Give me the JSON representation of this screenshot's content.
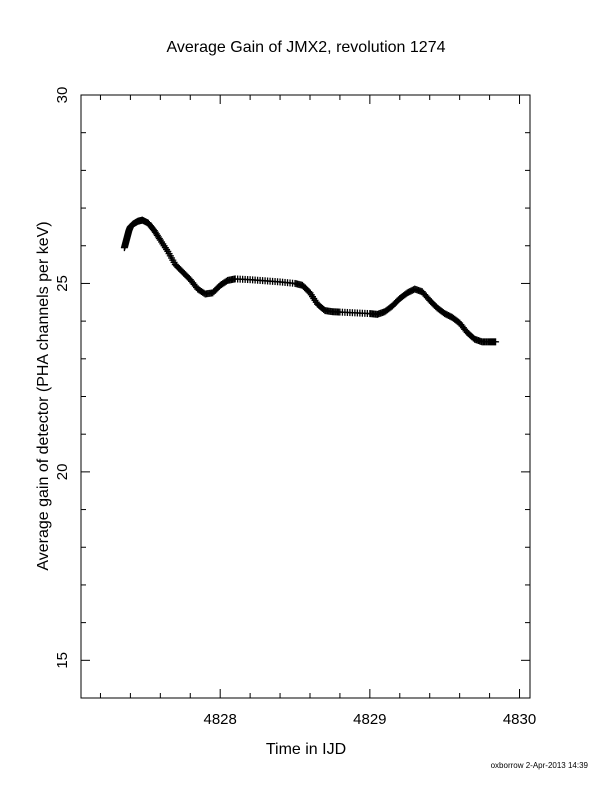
{
  "chart_data": {
    "type": "scatter",
    "title": "Average Gain of JMX2, revolution 1274",
    "xlabel": "Time in IJD",
    "ylabel": "Average gain of detector (PHA channels per keV)",
    "xlim": [
      4827.07,
      4830.07
    ],
    "ylim": [
      14,
      30
    ],
    "x_ticks": [
      4828,
      4829,
      4830
    ],
    "x_tick_labels": [
      "4828",
      "4829",
      "4830"
    ],
    "y_ticks": [
      15,
      20,
      25,
      30
    ],
    "y_tick_labels": [
      "15",
      "20",
      "25",
      "30"
    ],
    "grid": false,
    "marker": "+",
    "color": "#000000",
    "series": [
      {
        "points": [
          [
            4827.36,
            25.95
          ],
          [
            4827.37,
            26.1
          ],
          [
            4827.38,
            26.25
          ],
          [
            4827.39,
            26.4
          ],
          [
            4827.4,
            26.5
          ],
          [
            4827.42,
            26.58
          ],
          [
            4827.45,
            26.65
          ],
          [
            4827.48,
            26.68
          ],
          [
            4827.52,
            26.6
          ],
          [
            4827.56,
            26.4
          ],
          [
            4827.6,
            26.15
          ],
          [
            4827.65,
            25.85
          ],
          [
            4827.7,
            25.5
          ],
          [
            4827.75,
            25.3
          ],
          [
            4827.8,
            25.1
          ],
          [
            4827.85,
            24.85
          ],
          [
            4827.9,
            24.72
          ],
          [
            4827.95,
            24.75
          ],
          [
            4828.0,
            24.95
          ],
          [
            4828.05,
            25.08
          ],
          [
            4828.1,
            25.12
          ],
          [
            4828.2,
            25.1
          ],
          [
            4828.3,
            25.07
          ],
          [
            4828.4,
            25.04
          ],
          [
            4828.5,
            25.0
          ],
          [
            4828.55,
            24.95
          ],
          [
            4828.6,
            24.75
          ],
          [
            4828.65,
            24.45
          ],
          [
            4828.7,
            24.28
          ],
          [
            4828.75,
            24.25
          ],
          [
            4828.8,
            24.24
          ],
          [
            4828.9,
            24.22
          ],
          [
            4829.0,
            24.2
          ],
          [
            4829.05,
            24.18
          ],
          [
            4829.1,
            24.25
          ],
          [
            4829.15,
            24.4
          ],
          [
            4829.2,
            24.6
          ],
          [
            4829.25,
            24.75
          ],
          [
            4829.3,
            24.85
          ],
          [
            4829.35,
            24.78
          ],
          [
            4829.4,
            24.55
          ],
          [
            4829.45,
            24.35
          ],
          [
            4829.5,
            24.2
          ],
          [
            4829.55,
            24.1
          ],
          [
            4829.6,
            23.95
          ],
          [
            4829.65,
            23.7
          ],
          [
            4829.7,
            23.52
          ],
          [
            4829.75,
            23.45
          ],
          [
            4829.8,
            23.45
          ],
          [
            4829.84,
            23.45
          ]
        ]
      }
    ]
  },
  "footer": {
    "stamp": "oxborrow  2-Apr-2013 14:39"
  }
}
